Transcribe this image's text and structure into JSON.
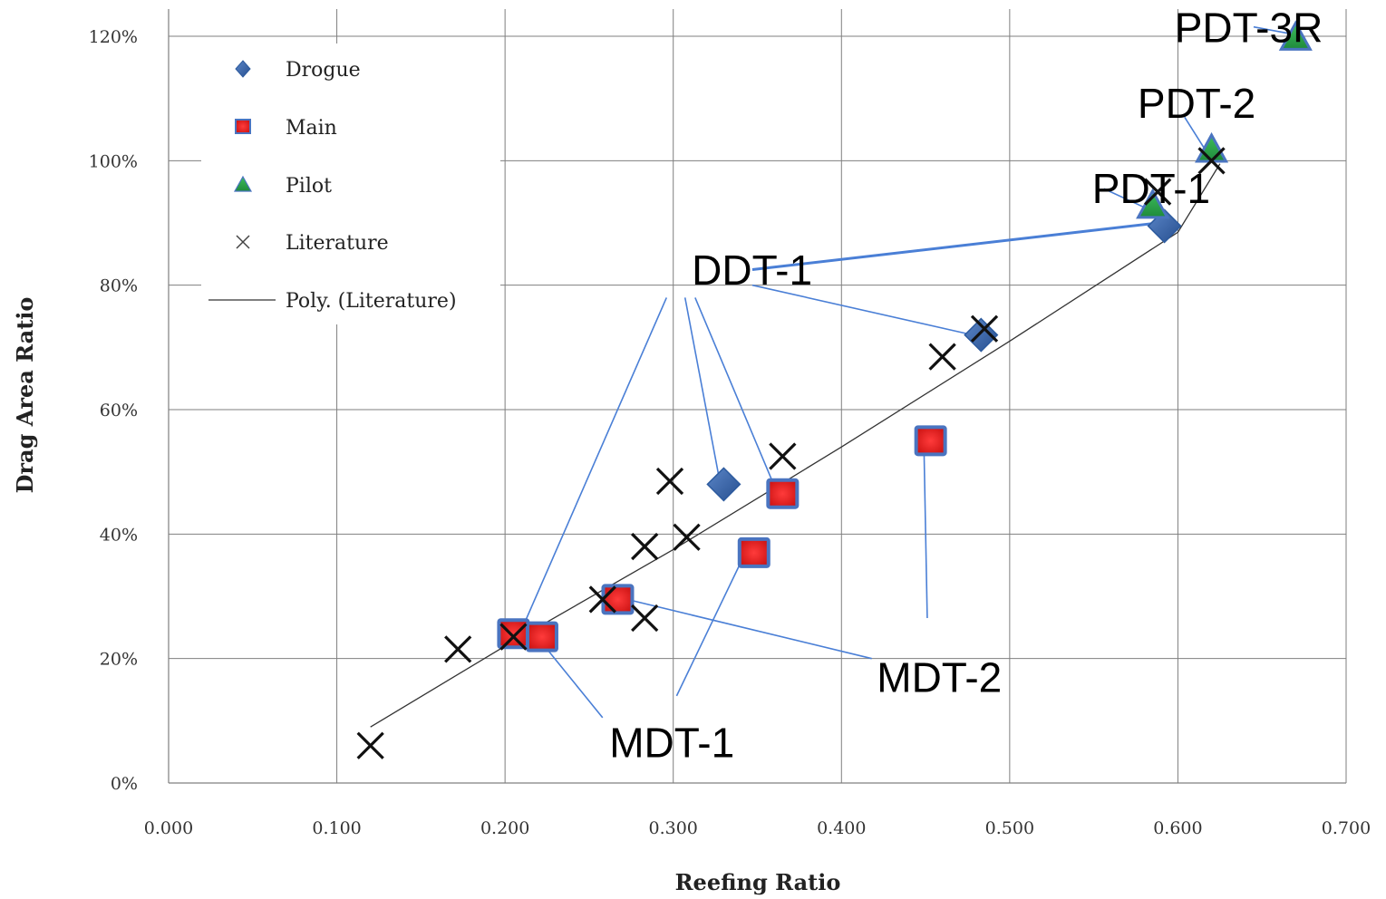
{
  "chart_data": {
    "type": "scatter",
    "xlabel": "Reefing Ratio",
    "ylabel": "Drag Area Ratio",
    "xlim": [
      0,
      0.7
    ],
    "ylim": [
      0,
      1.2
    ],
    "x_ticks": [
      "0.000",
      "0.100",
      "0.200",
      "0.300",
      "0.400",
      "0.500",
      "0.600",
      "0.700"
    ],
    "y_ticks": [
      "0%",
      "20%",
      "40%",
      "60%",
      "80%",
      "100%",
      "120%"
    ],
    "grid": true,
    "legend_position": "top-left",
    "series": [
      {
        "name": "Drogue",
        "marker": "diamond",
        "color": "#3b64a8",
        "points": [
          {
            "x": 0.33,
            "y": 0.48
          },
          {
            "x": 0.483,
            "y": 0.72
          },
          {
            "x": 0.592,
            "y": 0.895
          }
        ]
      },
      {
        "name": "Main",
        "marker": "square",
        "color": "#e52121",
        "border": "#4a74c0",
        "points": [
          {
            "x": 0.205,
            "y": 0.24
          },
          {
            "x": 0.222,
            "y": 0.235
          },
          {
            "x": 0.267,
            "y": 0.295
          },
          {
            "x": 0.348,
            "y": 0.37
          },
          {
            "x": 0.365,
            "y": 0.465
          },
          {
            "x": 0.453,
            "y": 0.55
          }
        ]
      },
      {
        "name": "Pilot",
        "marker": "triangle",
        "color": "#2ea24a",
        "border": "#4a74c0",
        "points": [
          {
            "x": 0.585,
            "y": 0.925
          },
          {
            "x": 0.62,
            "y": 1.015
          },
          {
            "x": 0.67,
            "y": 1.195
          }
        ]
      },
      {
        "name": "Literature",
        "marker": "x",
        "color": "#111111",
        "points": [
          {
            "x": 0.12,
            "y": 0.06
          },
          {
            "x": 0.172,
            "y": 0.215
          },
          {
            "x": 0.205,
            "y": 0.235
          },
          {
            "x": 0.258,
            "y": 0.295
          },
          {
            "x": 0.283,
            "y": 0.38
          },
          {
            "x": 0.283,
            "y": 0.265
          },
          {
            "x": 0.298,
            "y": 0.485
          },
          {
            "x": 0.308,
            "y": 0.395
          },
          {
            "x": 0.365,
            "y": 0.525
          },
          {
            "x": 0.46,
            "y": 0.685
          },
          {
            "x": 0.485,
            "y": 0.73
          },
          {
            "x": 0.588,
            "y": 0.95
          },
          {
            "x": 0.62,
            "y": 1.0
          }
        ]
      },
      {
        "name": "Poly. (Literature)",
        "marker": "line",
        "color": "#333333",
        "points": [
          {
            "x": 0.12,
            "y": 0.09
          },
          {
            "x": 0.2,
            "y": 0.22
          },
          {
            "x": 0.3,
            "y": 0.375
          },
          {
            "x": 0.4,
            "y": 0.54
          },
          {
            "x": 0.5,
            "y": 0.71
          },
          {
            "x": 0.6,
            "y": 0.885
          },
          {
            "x": 0.625,
            "y": 0.995
          }
        ]
      }
    ],
    "annotations": [
      {
        "text": "PDT-3R",
        "label_x": 0.598,
        "label_y": 1.214,
        "targets": [
          {
            "from": [
              0.645,
              1.215
            ],
            "to": [
              0.665,
              1.205
            ]
          }
        ]
      },
      {
        "text": "PDT-2",
        "label_x": 0.576,
        "label_y": 1.092,
        "targets": [
          {
            "from": [
              0.604,
              1.07
            ],
            "to": [
              0.618,
              1.01
            ]
          }
        ]
      },
      {
        "text": "PDT-1",
        "label_x": 0.549,
        "label_y": 0.955,
        "targets": [
          {
            "from": [
              0.556,
              0.955
            ],
            "to": [
              0.58,
              0.925
            ]
          }
        ]
      },
      {
        "text": "DDT-1",
        "label_x": 0.311,
        "label_y": 0.824,
        "targets": [
          {
            "from": [
              0.347,
              0.825
            ],
            "to": [
              0.588,
              0.9
            ]
          },
          {
            "from": [
              0.347,
              0.8
            ],
            "to": [
              0.478,
              0.72
            ]
          },
          {
            "from": [
              0.296,
              0.78
            ],
            "to": [
              0.208,
              0.235
            ]
          },
          {
            "from": [
              0.307,
              0.78
            ],
            "to": [
              0.328,
              0.48
            ]
          },
          {
            "from": [
              0.313,
              0.78
            ],
            "to": [
              0.362,
              0.465
            ]
          }
        ]
      },
      {
        "text": "MDT-2",
        "label_x": 0.421,
        "label_y": 0.17,
        "targets": [
          {
            "from": [
              0.451,
              0.265
            ],
            "to": [
              0.449,
              0.545
            ]
          },
          {
            "from": [
              0.418,
              0.2
            ],
            "to": [
              0.265,
              0.3
            ]
          }
        ]
      },
      {
        "text": "MDT-1",
        "label_x": 0.262,
        "label_y": 0.065,
        "targets": [
          {
            "from": [
              0.302,
              0.14
            ],
            "to": [
              0.342,
              0.365
            ]
          },
          {
            "from": [
              0.258,
              0.105
            ],
            "to": [
              0.222,
              0.225
            ]
          }
        ]
      }
    ]
  }
}
